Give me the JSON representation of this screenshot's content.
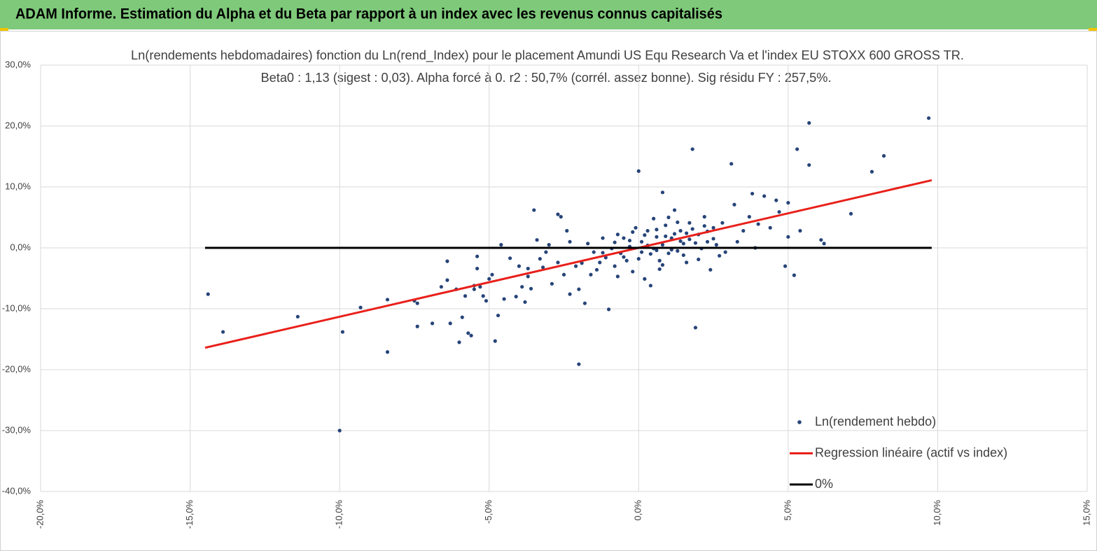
{
  "header": {
    "title": "ADAM Informe. Estimation du Alpha et du Beta par rapport à un index avec les revenus connus capitalisés"
  },
  "chart_data": {
    "type": "scatter",
    "title": "Ln(rendements hebdomadaires) fonction du Ln(rend_Index) pour le placement Amundi US Equ Research Va et l'index EU STOXX 600 GROSS TR.",
    "subtitle": "Beta0 : 1,13  (sigest : 0,03).  Alpha forcé à 0. r2 : 50,7% (corrél. assez bonne). Sig résidu FY : 257,5%.",
    "xlim": [
      -20,
      15
    ],
    "ylim": [
      -40,
      30
    ],
    "xticks": [
      {
        "value": -20,
        "label": "-20,0%"
      },
      {
        "value": -15,
        "label": "-15,0%"
      },
      {
        "value": -10,
        "label": "-10,0%"
      },
      {
        "value": -5,
        "label": "-5,0%"
      },
      {
        "value": 0,
        "label": "0,0%"
      },
      {
        "value": 5,
        "label": "5,0%"
      },
      {
        "value": 10,
        "label": "10,0%"
      },
      {
        "value": 15,
        "label": "15,0%"
      }
    ],
    "yticks": [
      {
        "value": -40,
        "label": "-40,0%"
      },
      {
        "value": -30,
        "label": "-30,0%"
      },
      {
        "value": -20,
        "label": "-20,0%"
      },
      {
        "value": -10,
        "label": "-10,0%"
      },
      {
        "value": 0,
        "label": "0,0%"
      },
      {
        "value": 10,
        "label": "10,0%"
      },
      {
        "value": 20,
        "label": "20,0%"
      },
      {
        "value": 30,
        "label": "30,0%"
      }
    ],
    "grid": true,
    "legend": "lower right",
    "series": [
      {
        "name": "Ln(rendement hebdo)",
        "color": "#264478",
        "type": "scatter",
        "x": [
          -14.4,
          -13.9,
          -11.4,
          -9.9,
          -10.0,
          -9.3,
          -8.4,
          -8.4,
          -7.5,
          -7.4,
          -7.4,
          -6.9,
          -6.6,
          -6.4,
          -6.4,
          -6.3,
          -6.0,
          -5.9,
          -6.1,
          -5.8,
          -5.7,
          -5.6,
          -5.5,
          -5.5,
          -5.4,
          -5.4,
          -5.3,
          -5.2,
          -5.1,
          -4.8,
          -4.7,
          -4.6,
          -5.0,
          -4.9,
          -4.5,
          -4.3,
          -4.1,
          -4.0,
          -3.9,
          -3.8,
          -3.7,
          -3.7,
          -3.6,
          -3.5,
          -3.4,
          -3.3,
          -3.2,
          -3.1,
          -3.0,
          -2.9,
          -2.7,
          -2.7,
          -2.6,
          -2.5,
          -2.4,
          -2.3,
          -2.3,
          -2.1,
          -2.0,
          -2.0,
          -1.9,
          -1.8,
          -1.7,
          -1.6,
          -1.5,
          -1.4,
          -1.3,
          -1.2,
          -1.1,
          -1.0,
          -0.9,
          -0.8,
          -0.7,
          -0.7,
          -0.6,
          -0.5,
          -0.4,
          -0.3,
          -0.2,
          -0.1,
          0.0,
          0.1,
          0.1,
          0.2,
          0.3,
          0.4,
          0.5,
          0.6,
          0.7,
          0.8,
          0.8,
          0.9,
          1.0,
          1.1,
          1.2,
          1.3,
          1.4,
          1.5,
          1.6,
          1.7,
          1.8,
          1.9,
          2.0,
          2.1,
          2.2,
          2.3,
          2.4,
          2.5,
          2.6,
          2.8,
          2.9,
          3.1,
          3.2,
          3.3,
          3.5,
          3.7,
          3.8,
          3.9,
          4.0,
          4.2,
          4.4,
          4.6,
          4.7,
          4.9,
          5.0,
          5.0,
          5.2,
          5.3,
          5.4,
          5.7,
          5.7,
          6.1,
          6.2,
          7.1,
          7.8,
          8.2,
          9.7,
          -0.3,
          0.2,
          0.4,
          0.6,
          0.9,
          1.1,
          1.3,
          1.6,
          1.9,
          2.2,
          2.5,
          0.0,
          0.5,
          0.8,
          1.2,
          1.5,
          1.8,
          -0.5,
          -0.8,
          0.3,
          0.7,
          1.0,
          1.4,
          2.0,
          2.3,
          -1.2,
          -0.2,
          0.6,
          1.7,
          2.7
        ],
        "values": [
          -7.6,
          -13.8,
          -11.3,
          -13.8,
          -30.0,
          -9.8,
          -8.5,
          -17.1,
          -8.7,
          -12.9,
          -9.1,
          -12.4,
          -6.4,
          -5.3,
          -2.2,
          -12.4,
          -15.5,
          -11.4,
          -6.8,
          -7.9,
          -14.0,
          -14.4,
          -6.2,
          -6.8,
          -1.4,
          -3.4,
          -6.4,
          -7.9,
          -8.7,
          -15.3,
          -11.1,
          0.5,
          -5.1,
          -4.4,
          -8.4,
          -1.7,
          -8.0,
          -3.0,
          -6.4,
          -8.9,
          -3.4,
          -4.7,
          -6.7,
          6.2,
          1.3,
          -1.8,
          -3.2,
          -0.7,
          0.5,
          -5.9,
          -2.4,
          5.5,
          5.1,
          -4.4,
          2.8,
          -7.6,
          1.0,
          -3.0,
          -6.8,
          -19.1,
          -2.5,
          -9.1,
          0.7,
          -4.4,
          -0.7,
          -3.6,
          -2.4,
          1.6,
          -1.6,
          -10.1,
          -0.1,
          -3.0,
          2.2,
          -4.7,
          -0.9,
          1.6,
          -2.1,
          0.2,
          -3.9,
          3.3,
          12.6,
          -0.7,
          1.0,
          -5.1,
          2.8,
          -6.2,
          -0.1,
          1.8,
          -2.1,
          9.1,
          0.5,
          3.7,
          -0.9,
          1.6,
          6.2,
          -0.5,
          2.8,
          0.7,
          -2.4,
          4.1,
          16.2,
          -13.1,
          2.2,
          -0.1,
          5.1,
          1.0,
          -3.6,
          3.3,
          0.5,
          4.1,
          -0.7,
          13.8,
          7.1,
          1.0,
          2.8,
          5.1,
          8.9,
          0.0,
          3.9,
          8.5,
          3.3,
          7.8,
          5.9,
          -3.0,
          7.4,
          1.8,
          -4.5,
          16.2,
          2.8,
          20.5,
          13.6,
          1.3,
          0.7,
          5.6,
          12.5,
          15.1,
          21.3,
          1.2,
          2.1,
          -1.0,
          3.0,
          1.9,
          -0.3,
          4.2,
          2.4,
          0.8,
          3.6,
          1.5,
          -1.8,
          4.8,
          -2.8,
          2.3,
          -1.2,
          3.1,
          -1.5,
          0.9,
          0.4,
          -3.5,
          5.0,
          1.1,
          -1.9,
          2.7,
          -0.8,
          2.6,
          -0.4,
          1.4,
          -1.3
        ]
      },
      {
        "name": "Regression linéaire (actif vs index)",
        "color": "#e8201a",
        "type": "line",
        "x": [
          -14.5,
          9.8
        ],
        "values": [
          -16.4,
          11.1
        ]
      },
      {
        "name": "0%",
        "color": "#000000",
        "type": "line",
        "x": [
          -14.5,
          9.8
        ],
        "values": [
          0,
          0
        ]
      }
    ]
  }
}
